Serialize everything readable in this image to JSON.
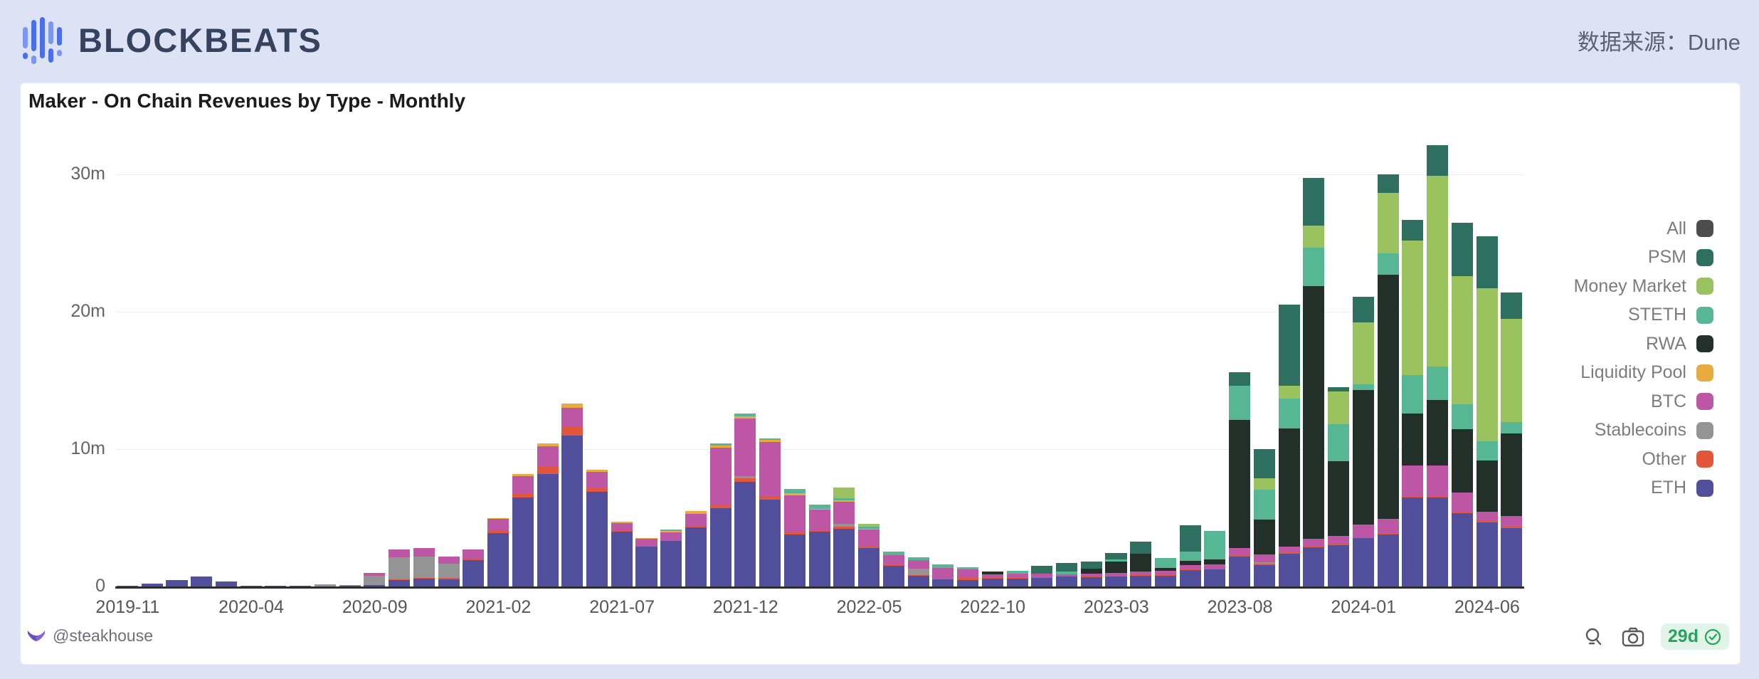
{
  "header": {
    "logo_text": "BLOCKBEATS",
    "source_label": "数据来源：Dune"
  },
  "card": {
    "title": "Maker - On Chain Revenues by Type - Monthly",
    "footer": {
      "author": "@steakhouse",
      "badge_label": "29d",
      "icons": [
        "magnifier-icon",
        "camera-icon",
        "check-circle-icon"
      ]
    }
  },
  "theme": {
    "page_background": "#dde3f4",
    "card_background": "#ffffff",
    "logo_blue": "#4b6fe8",
    "logo_text_color": "#36425e",
    "badge_green": "#27a35f",
    "badge_background": "#e2f4e8",
    "author_icon_purple": "#8a63d2"
  },
  "chart_data": {
    "type": "bar",
    "stacked": true,
    "title": "Maker - On Chain Revenues by Type - Monthly",
    "unit": "millions",
    "xlabel": "",
    "ylabel": "",
    "ylim": [
      0,
      33
    ],
    "grid": true,
    "legend_position": "right",
    "yticks": [
      {
        "value": 0,
        "label": "0"
      },
      {
        "value": 10,
        "label": "10m"
      },
      {
        "value": 20,
        "label": "20m"
      },
      {
        "value": 30,
        "label": "30m"
      }
    ],
    "x_tick_step": 5,
    "x": [
      "2019-11",
      "2019-12",
      "2020-01",
      "2020-02",
      "2020-03",
      "2020-04",
      "2020-05",
      "2020-06",
      "2020-07",
      "2020-08",
      "2020-09",
      "2020-10",
      "2020-11",
      "2020-12",
      "2021-01",
      "2021-02",
      "2021-03",
      "2021-04",
      "2021-05",
      "2021-06",
      "2021-07",
      "2021-08",
      "2021-09",
      "2021-10",
      "2021-11",
      "2021-12",
      "2022-01",
      "2022-02",
      "2022-03",
      "2022-04",
      "2022-05",
      "2022-06",
      "2022-07",
      "2022-08",
      "2022-09",
      "2022-10",
      "2022-11",
      "2022-12",
      "2023-01",
      "2023-02",
      "2023-03",
      "2023-04",
      "2023-05",
      "2023-06",
      "2023-07",
      "2023-08",
      "2023-09",
      "2023-10",
      "2023-11",
      "2023-12",
      "2024-01",
      "2024-02",
      "2024-03",
      "2024-04",
      "2024-05",
      "2024-06",
      "2024-07"
    ],
    "legend": [
      {
        "label": "All",
        "color": "#4d4d4d"
      },
      {
        "label": "PSM",
        "color": "#2e6f60"
      },
      {
        "label": "Money Market",
        "color": "#9ac25e"
      },
      {
        "label": "STETH",
        "color": "#57b795"
      },
      {
        "label": "RWA",
        "color": "#232f29"
      },
      {
        "label": "Liquidity Pool",
        "color": "#e9aa3f"
      },
      {
        "label": "BTC",
        "color": "#bd56a4"
      },
      {
        "label": "Stablecoins",
        "color": "#949494"
      },
      {
        "label": "Other",
        "color": "#e2573b"
      },
      {
        "label": "ETH",
        "color": "#514f9b"
      }
    ],
    "series": [
      {
        "name": "ETH",
        "color": "#514f9b",
        "values": [
          0.05,
          0.2,
          0.45,
          0.75,
          0.35,
          0.05,
          0.05,
          0.05,
          0,
          0.05,
          0.1,
          0.45,
          0.55,
          0.5,
          1.9,
          3.9,
          6.5,
          8.2,
          11,
          6.9,
          4,
          2.9,
          3.3,
          4.3,
          5.7,
          7.6,
          6.3,
          3.8,
          4,
          4.2,
          2.8,
          1.5,
          0.8,
          0.5,
          0.45,
          0.55,
          0.55,
          0.6,
          0.75,
          0.65,
          0.75,
          0.8,
          0.8,
          1.2,
          1.25,
          2.2,
          1.55,
          2.4,
          2.85,
          3,
          3.5,
          3.8,
          6.5,
          6.5,
          5.35,
          4.65,
          4.25
        ]
      },
      {
        "name": "Other",
        "color": "#e2573b",
        "values": [
          0,
          0,
          0,
          0,
          0,
          0,
          0,
          0,
          0,
          0,
          0,
          0.05,
          0.05,
          0.1,
          0.1,
          0.15,
          0.3,
          0.5,
          0.6,
          0.3,
          0.1,
          0.05,
          0.05,
          0.1,
          0.2,
          0.3,
          0.3,
          0.15,
          0.1,
          0.15,
          0.15,
          0.05,
          0.05,
          0.05,
          0.2,
          0.05,
          0.05,
          0.05,
          0.05,
          0.15,
          0.05,
          0.05,
          0.05,
          0.05,
          0.05,
          0.1,
          0.1,
          0.1,
          0.1,
          0.1,
          0.1,
          0.1,
          0.1,
          0.1,
          0.1,
          0.1,
          0.1
        ]
      },
      {
        "name": "Stablecoins",
        "color": "#949494",
        "values": [
          0,
          0,
          0,
          0,
          0,
          0,
          0,
          0,
          0.15,
          0.05,
          0.7,
          1.65,
          1.6,
          1.05,
          0,
          0,
          0,
          0,
          0,
          0,
          0,
          0,
          0,
          0,
          0,
          0.15,
          0,
          0,
          0,
          0.2,
          0,
          0,
          0.45,
          0,
          0,
          0,
          0,
          0,
          0,
          0,
          0,
          0,
          0,
          0,
          0,
          0,
          0.1,
          0,
          0,
          0,
          0,
          0,
          0,
          0,
          0,
          0,
          0
        ]
      },
      {
        "name": "BTC",
        "color": "#bd56a4",
        "values": [
          0,
          0,
          0,
          0,
          0,
          0,
          0,
          0,
          0,
          0,
          0.2,
          0.55,
          0.6,
          0.55,
          0.7,
          0.85,
          1.25,
          1.5,
          1.4,
          1.15,
          0.5,
          0.5,
          0.6,
          0.9,
          4.2,
          4.2,
          3.9,
          2.7,
          1.5,
          1.6,
          1.2,
          0.75,
          0.6,
          0.8,
          0.6,
          0.3,
          0.35,
          0.3,
          0.1,
          0.15,
          0.2,
          0.25,
          0.3,
          0.3,
          0.3,
          0.5,
          0.6,
          0.4,
          0.5,
          0.6,
          0.9,
          1,
          2.2,
          2.2,
          1.4,
          0.7,
          0.8
        ]
      },
      {
        "name": "Liquidity Pool",
        "color": "#e9aa3f",
        "values": [
          0,
          0,
          0,
          0,
          0,
          0,
          0,
          0,
          0,
          0,
          0,
          0,
          0,
          0,
          0,
          0.1,
          0.15,
          0.2,
          0.3,
          0.15,
          0.1,
          0.1,
          0.1,
          0.2,
          0.15,
          0.15,
          0.15,
          0.15,
          0.05,
          0.1,
          0.05,
          0,
          0,
          0,
          0,
          0,
          0,
          0,
          0,
          0,
          0,
          0,
          0,
          0,
          0,
          0,
          0,
          0,
          0,
          0,
          0,
          0,
          0,
          0,
          0,
          0,
          0
        ]
      },
      {
        "name": "RWA",
        "color": "#232f29",
        "values": [
          0,
          0,
          0,
          0,
          0,
          0,
          0,
          0,
          0,
          0,
          0,
          0,
          0,
          0,
          0,
          0,
          0,
          0,
          0,
          0,
          0,
          0,
          0,
          0,
          0,
          0,
          0,
          0,
          0,
          0,
          0,
          0,
          0,
          0,
          0,
          0.2,
          0,
          0,
          0,
          0.35,
          0.8,
          1.3,
          0.2,
          0.3,
          0.35,
          9.3,
          2.5,
          8.6,
          18.4,
          5.4,
          9.8,
          17.8,
          3.8,
          4.8,
          4.6,
          3.7,
          6
        ]
      },
      {
        "name": "STETH",
        "color": "#57b795",
        "values": [
          0,
          0,
          0,
          0,
          0,
          0,
          0,
          0,
          0,
          0,
          0,
          0,
          0,
          0,
          0,
          0,
          0,
          0,
          0,
          0,
          0,
          0,
          0.1,
          0,
          0.15,
          0.2,
          0.15,
          0.3,
          0.3,
          0.2,
          0.15,
          0.25,
          0.25,
          0.25,
          0.15,
          0,
          0.2,
          0,
          0.2,
          0,
          0.15,
          0,
          0.7,
          0.7,
          2.1,
          2.5,
          2.2,
          2.2,
          2.8,
          2.7,
          0.4,
          1.55,
          2.8,
          2.4,
          1.8,
          1.4,
          0.8
        ]
      },
      {
        "name": "Money Market",
        "color": "#9ac25e",
        "values": [
          0,
          0,
          0,
          0,
          0,
          0,
          0,
          0,
          0,
          0,
          0,
          0,
          0,
          0,
          0,
          0,
          0,
          0,
          0,
          0,
          0,
          0,
          0,
          0,
          0,
          0,
          0,
          0,
          0,
          0.75,
          0.2,
          0,
          0,
          0,
          0,
          0,
          0,
          0,
          0,
          0,
          0,
          0,
          0,
          0,
          0,
          0,
          0.85,
          0.9,
          1.6,
          2.4,
          4.5,
          4.4,
          9.8,
          13.9,
          9.35,
          11.15,
          7.55
        ]
      },
      {
        "name": "PSM",
        "color": "#2e6f60",
        "values": [
          0,
          0,
          0,
          0,
          0,
          0,
          0,
          0,
          0,
          0,
          0,
          0,
          0,
          0,
          0,
          0,
          0,
          0,
          0,
          0,
          0,
          0,
          0,
          0,
          0,
          0,
          0,
          0,
          0,
          0,
          0,
          0,
          0,
          0,
          0,
          0,
          0,
          0.55,
          0.6,
          0.5,
          0.5,
          0.85,
          0,
          1.9,
          0,
          1,
          2.1,
          5.9,
          3.5,
          0.3,
          1.9,
          1.35,
          1.5,
          2.2,
          3.9,
          3.8,
          1.9
        ]
      }
    ]
  }
}
